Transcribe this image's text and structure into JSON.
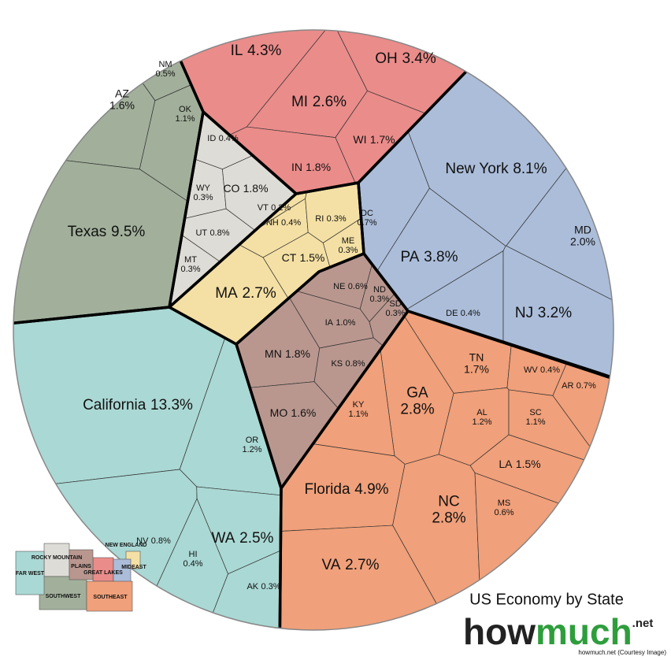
{
  "chart_data": {
    "type": "voronoi",
    "title": "US Economy by State",
    "logo": [
      "how",
      "much",
      ".net"
    ],
    "caption": "howmuch.net (Courtesy Image)",
    "series": [
      {
        "name": "GREAT LAKES",
        "color": "#ea8c8a",
        "categories": [
          "IL",
          "OH",
          "MI",
          "WI",
          "IN"
        ],
        "values": [
          4.3,
          3.4,
          2.6,
          1.7,
          1.8
        ],
        "value_labels": [
          "4.3%",
          "3.4%",
          "2.6%",
          "1.7%",
          "1.8%"
        ]
      },
      {
        "name": "ROCKY MOUNTAIN",
        "color": "#dedcd6",
        "categories": [
          "ID",
          "WY",
          "CO",
          "UT",
          "MT"
        ],
        "values": [
          0.4,
          0.3,
          1.8,
          0.8,
          0.3
        ],
        "value_labels": [
          "0.4%",
          "0.3%",
          "1.8%",
          "0.8%",
          "0.3%"
        ]
      },
      {
        "name": "SOUTHWEST",
        "color": "#a2b09b",
        "categories": [
          "NM",
          "AZ",
          "OK",
          "Texas"
        ],
        "values": [
          0.5,
          1.6,
          1.1,
          9.5
        ],
        "value_labels": [
          "0.5%",
          "1.6%",
          "1.1%",
          "9.5%"
        ]
      },
      {
        "name": "NEW ENGLAND",
        "color": "#f4e0a4",
        "categories": [
          "VT",
          "NH",
          "RI",
          "ME",
          "CT",
          "MA"
        ],
        "values": [
          0.2,
          0.4,
          0.3,
          0.3,
          1.5,
          2.7
        ],
        "value_labels": [
          "0.2%",
          "0.4%",
          "0.3%",
          "0.3%",
          "1.5%",
          "2.7%"
        ]
      },
      {
        "name": "PLAINS",
        "color": "#b9978f",
        "categories": [
          "NE",
          "ND",
          "SD",
          "IA",
          "KS",
          "MN",
          "MO"
        ],
        "values": [
          0.6,
          0.3,
          0.3,
          1.0,
          0.8,
          1.8,
          1.6
        ],
        "value_labels": [
          "0.6%",
          "0.3%",
          "0.3%",
          "1.0%",
          "0.8%",
          "1.8%",
          "1.6%"
        ]
      },
      {
        "name": "MIDEAST",
        "color": "#abbdd9",
        "categories": [
          "New York",
          "MD",
          "DC",
          "PA",
          "DE",
          "NJ"
        ],
        "values": [
          8.1,
          2.0,
          0.7,
          3.8,
          0.4,
          3.2
        ],
        "value_labels": [
          "8.1%",
          "2.0%",
          "0.7%",
          "3.8%",
          "0.4%",
          "3.2%"
        ]
      },
      {
        "name": "SOUTHEAST",
        "color": "#f0a07a",
        "categories": [
          "TN",
          "WV",
          "AR",
          "GA",
          "KY",
          "AL",
          "SC",
          "LA",
          "Florida",
          "NC",
          "MS",
          "VA"
        ],
        "values": [
          1.7,
          0.4,
          0.7,
          2.8,
          1.1,
          1.2,
          1.1,
          1.5,
          4.9,
          2.8,
          0.6,
          2.7
        ],
        "value_labels": [
          "1.7%",
          "0.4%",
          "0.7%",
          "2.8%",
          "1.1%",
          "1.2%",
          "1.1%",
          "1.5%",
          "4.9%",
          "2.8%",
          "0.6%",
          "2.7%"
        ]
      },
      {
        "name": "FAR WEST",
        "color": "#aad8d4",
        "categories": [
          "California",
          "OR",
          "NV",
          "HI",
          "WA",
          "AK"
        ],
        "values": [
          13.3,
          1.2,
          0.8,
          0.4,
          2.5,
          0.3
        ],
        "value_labels": [
          "13.3%",
          "1.2%",
          "0.8%",
          "0.4%",
          "2.5%",
          "0.3%"
        ]
      }
    ]
  }
}
